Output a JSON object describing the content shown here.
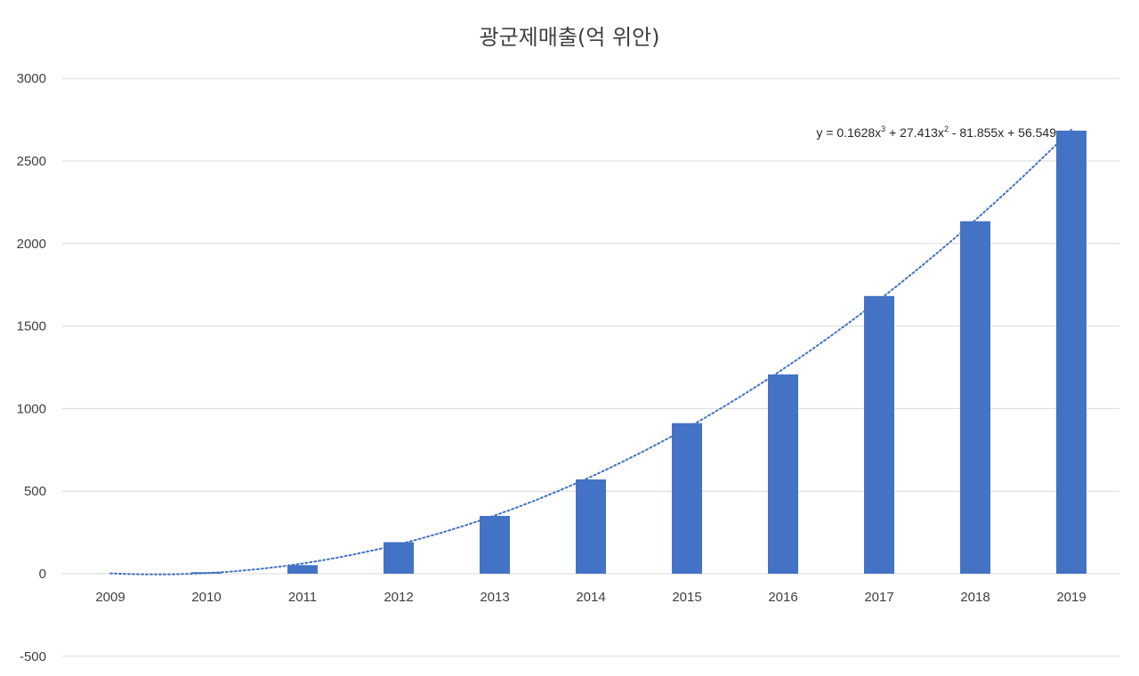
{
  "chart_data": {
    "type": "bar",
    "title": "광군제매출(억 위안)",
    "xlabel": "",
    "ylabel": "",
    "categories": [
      "2009",
      "2010",
      "2011",
      "2012",
      "2013",
      "2014",
      "2015",
      "2016",
      "2017",
      "2018",
      "2019"
    ],
    "values": [
      0.5,
      9.36,
      52,
      191,
      350,
      571,
      912,
      1207,
      1682,
      2135,
      2684
    ],
    "ylim": [
      -500,
      3000
    ],
    "yticks": [
      "-500",
      "0",
      "500",
      "1000",
      "1500",
      "2000",
      "2500",
      "3000"
    ],
    "grid": true,
    "bar_color": "#4472C4",
    "trendline": {
      "type": "polynomial",
      "order": 3,
      "coefficients": [
        0.1628,
        27.413,
        -81.855,
        56.549
      ],
      "style": "dotted",
      "color": "#4472C4",
      "equation": {
        "prefix": "y = 0.1628x",
        "exp1": "3",
        "middle": " + 27.413x",
        "exp2": "2",
        "suffix": " - 81.855x + 56.549"
      }
    }
  }
}
